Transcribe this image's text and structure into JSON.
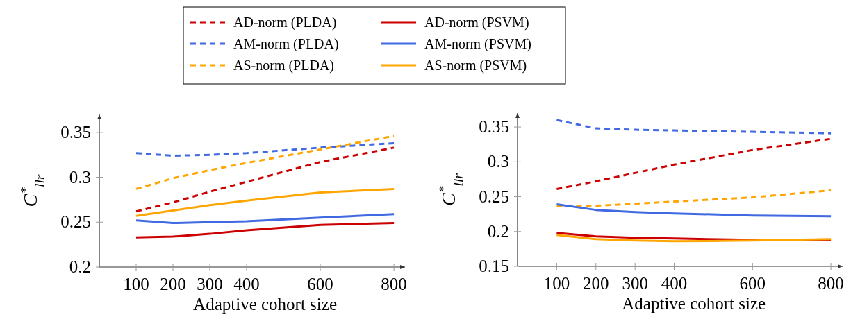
{
  "chart_data": [
    {
      "type": "line",
      "xlabel": "Adaptive cohort size",
      "ylabel": "C$^{*}$$_{llr}$",
      "x": [
        100,
        200,
        300,
        400,
        600,
        800
      ],
      "xlim": [
        0,
        830
      ],
      "xticks": [
        100,
        200,
        300,
        400,
        600,
        800
      ],
      "ylim": [
        0.2,
        0.37
      ],
      "yticks": [
        0.2,
        0.25,
        0.3,
        0.35
      ],
      "legend": "top",
      "grid": false,
      "marker": "none",
      "series": [
        {
          "name": "AD-norm (PLDA)",
          "color": "#cc0000",
          "line_style": "dashed",
          "values": [
            0.262,
            0.272,
            0.284,
            0.295,
            0.317,
            0.333
          ]
        },
        {
          "name": "AM-norm (PLDA)",
          "color": "#4169e1",
          "line_style": "dashed",
          "values": [
            0.327,
            0.324,
            0.325,
            0.327,
            0.333,
            0.338
          ]
        },
        {
          "name": "AS-norm (PLDA)",
          "color": "#ffa500",
          "line_style": "dashed",
          "values": [
            0.287,
            0.299,
            0.308,
            0.316,
            0.331,
            0.346
          ]
        },
        {
          "name": "AD-norm (PSVM)",
          "color": "#cc0000",
          "line_style": "solid",
          "values": [
            0.233,
            0.234,
            0.237,
            0.241,
            0.247,
            0.249
          ]
        },
        {
          "name": "AM-norm (PSVM)",
          "color": "#4169e1",
          "line_style": "solid",
          "values": [
            0.252,
            0.249,
            0.25,
            0.251,
            0.255,
            0.259
          ]
        },
        {
          "name": "AS-norm (PSVM)",
          "color": "#ffa500",
          "line_style": "solid",
          "values": [
            0.257,
            0.263,
            0.269,
            0.274,
            0.283,
            0.287
          ]
        }
      ]
    },
    {
      "type": "line",
      "xlabel": "Adaptive cohort size",
      "ylabel": "C$^{*}$$_{llr}$",
      "x": [
        100,
        200,
        300,
        400,
        600,
        800
      ],
      "xlim": [
        0,
        830
      ],
      "xticks": [
        100,
        200,
        300,
        400,
        600,
        800
      ],
      "ylim": [
        0.15,
        0.37
      ],
      "yticks": [
        0.15,
        0.2,
        0.25,
        0.3,
        0.35
      ],
      "grid": false,
      "marker": "none",
      "series": [
        {
          "color": "#cc0000",
          "line_style": "dashed",
          "values": [
            0.261,
            0.272,
            0.284,
            0.296,
            0.317,
            0.333
          ]
        },
        {
          "color": "#4169e1",
          "line_style": "dashed",
          "values": [
            0.36,
            0.348,
            0.346,
            0.345,
            0.343,
            0.341
          ]
        },
        {
          "color": "#ffa500",
          "line_style": "dashed",
          "values": [
            0.237,
            0.237,
            0.24,
            0.243,
            0.249,
            0.259
          ]
        },
        {
          "color": "#cc0000",
          "line_style": "solid",
          "values": [
            0.198,
            0.193,
            0.191,
            0.19,
            0.188,
            0.188
          ]
        },
        {
          "color": "#4169e1",
          "line_style": "solid",
          "values": [
            0.239,
            0.231,
            0.228,
            0.226,
            0.223,
            0.222
          ]
        },
        {
          "color": "#ffa500",
          "line_style": "solid",
          "values": [
            0.195,
            0.189,
            0.187,
            0.186,
            0.187,
            0.189
          ]
        }
      ]
    }
  ]
}
